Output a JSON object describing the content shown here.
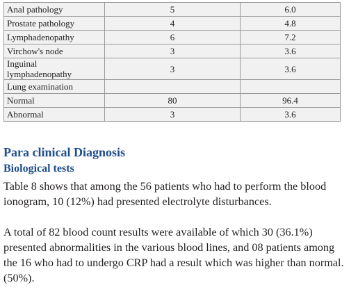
{
  "table": {
    "rows": [
      [
        "Anal pathology",
        "5",
        "6.0"
      ],
      [
        "Prostate pathology",
        "4",
        "4.8"
      ],
      [
        "Lymphadenopathy",
        "6",
        "7.2"
      ],
      [
        "Virchow's node",
        "3",
        "3.6"
      ],
      [
        "Inguinal lymphadenopathy",
        "3",
        "3.6"
      ],
      [
        "Lung examination"
      ],
      [
        "Normal",
        "80",
        "96.4"
      ],
      [
        "Abnormal",
        "3",
        "3.6"
      ]
    ]
  },
  "section": {
    "heading": "Para clinical Diagnosis",
    "subheading": "Biological tests",
    "paragraphs": [
      "Table 8 shows that among the 56 patients who had to perform the blood ionogram, 10 (12%) had presented electrolyte disturbances.",
      "A total of 82 blood count results were available of which 30 (36.1%) presented abnormalities in the various blood lines, and 08 patients among the 16 who had to undergo CRP had a result which was higher than normal. (50%)."
    ]
  }
}
